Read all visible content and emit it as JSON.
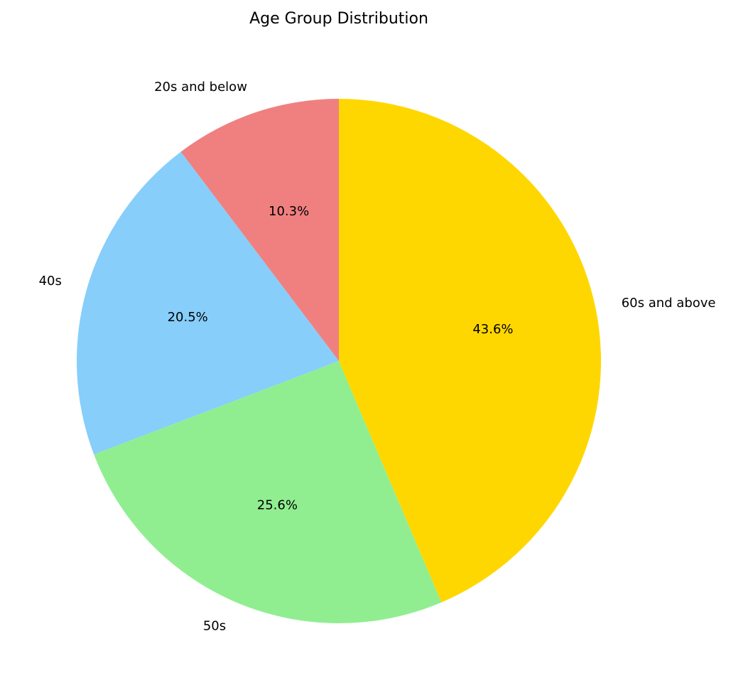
{
  "chart_data": {
    "type": "pie",
    "title": "Age Group Distribution",
    "start_angle_deg": 90,
    "direction": "counterclockwise",
    "slices": [
      {
        "label": "20s and below",
        "value": 10.3,
        "pct_label": "10.3%",
        "color": "#F08080"
      },
      {
        "label": "40s",
        "value": 20.5,
        "pct_label": "20.5%",
        "color": "#87CEFA"
      },
      {
        "label": "50s",
        "value": 25.6,
        "pct_label": "25.6%",
        "color": "#90EE90"
      },
      {
        "label": "60s and above",
        "value": 43.6,
        "pct_label": "43.6%",
        "color": "#FFD700"
      }
    ]
  }
}
